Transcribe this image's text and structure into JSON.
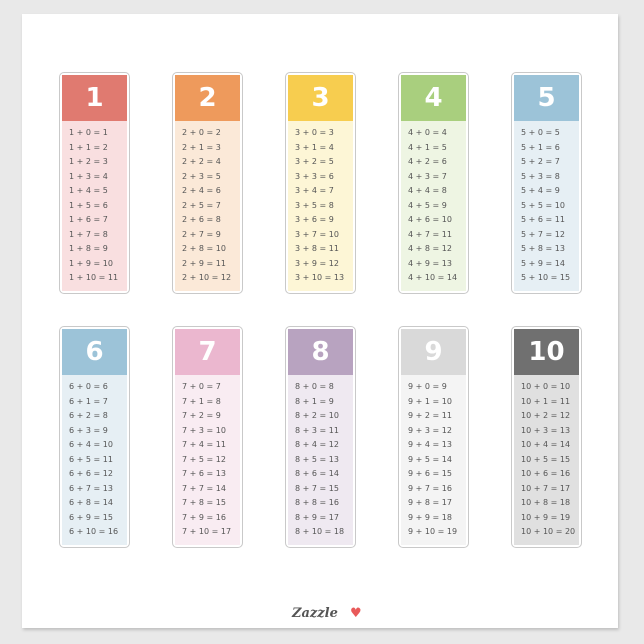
{
  "cards": [
    {
      "number": "1",
      "header_color": "#e07a70",
      "body_color": "#f9dfe0",
      "rows": [
        "1 + 0 = 1",
        "1 + 1 = 2",
        "1 + 2 = 3",
        "1 + 3 = 4",
        "1 + 4 = 5",
        "1 + 5 = 6",
        "1 + 6 = 7",
        "1 + 7 = 8",
        "1 + 8 = 9",
        "1 + 9 = 10",
        "1 + 10 = 11"
      ]
    },
    {
      "number": "2",
      "header_color": "#ee9a5c",
      "body_color": "#fbe9d8",
      "rows": [
        "2 + 0 = 2",
        "2 + 1 = 3",
        "2 + 2 = 4",
        "2 + 3 = 5",
        "2 + 4 = 6",
        "2 + 5 = 7",
        "2 + 6 = 8",
        "2 + 7 = 9",
        "2 + 8 = 10",
        "2 + 9 = 11",
        "2 + 10 = 12"
      ]
    },
    {
      "number": "3",
      "header_color": "#f7cd4f",
      "body_color": "#fdf6d6",
      "rows": [
        "3 + 0 = 3",
        "3 + 1 = 4",
        "3 + 2 = 5",
        "3 + 3 = 6",
        "3 + 4 = 7",
        "3 + 5 = 8",
        "3 + 6 = 9",
        "3 + 7 = 10",
        "3 + 8 = 11",
        "3 + 9 = 12",
        "3 + 10 = 13"
      ]
    },
    {
      "number": "4",
      "header_color": "#a9cf7e",
      "body_color": "#eef5e3",
      "rows": [
        "4 + 0 = 4",
        "4 + 1 = 5",
        "4 + 2 = 6",
        "4 + 3 = 7",
        "4 + 4 = 8",
        "4 + 5 = 9",
        "4 + 6 = 10",
        "4 + 7 = 11",
        "4 + 8 = 12",
        "4 + 9 = 13",
        "4 + 10 = 14"
      ]
    },
    {
      "number": "5",
      "header_color": "#9cc3d8",
      "body_color": "#e6eff4",
      "rows": [
        "5 + 0 = 5",
        "5 + 1 = 6",
        "5 + 2 = 7",
        "5 + 3 = 8",
        "5 + 4 = 9",
        "5 + 5 = 10",
        "5 + 6 = 11",
        "5 + 7 = 12",
        "5 + 8 = 13",
        "5 + 9 = 14",
        "5 + 10 = 15"
      ]
    },
    {
      "number": "6",
      "header_color": "#9cc3d8",
      "body_color": "#e6eff4",
      "rows": [
        "6 + 0 = 6",
        "6 + 1 = 7",
        "6 + 2 = 8",
        "6 + 3 = 9",
        "6 + 4 = 10",
        "6 + 5 = 11",
        "6 + 6 = 12",
        "6 + 7 = 13",
        "6 + 8 = 14",
        "6 + 9 = 15",
        "6 + 10 = 16"
      ]
    },
    {
      "number": "7",
      "header_color": "#ebb7cf",
      "body_color": "#f9ecf2",
      "rows": [
        "7 + 0 = 7",
        "7 + 1 = 8",
        "7 + 2 = 9",
        "7 + 3 = 10",
        "7 + 4 = 11",
        "7 + 5 = 12",
        "7 + 6 = 13",
        "7 + 7 = 14",
        "7 + 8 = 15",
        "7 + 9 = 16",
        "7 + 10 = 17"
      ]
    },
    {
      "number": "8",
      "header_color": "#b8a3c0",
      "body_color": "#efe9f1",
      "rows": [
        "8 + 0 = 8",
        "8 + 1 = 9",
        "8 + 2 = 10",
        "8 + 3 = 11",
        "8 + 4 = 12",
        "8 + 5 = 13",
        "8 + 6 = 14",
        "8 + 7 = 15",
        "8 + 8 = 16",
        "8 + 9 = 17",
        "8 + 10 = 18"
      ]
    },
    {
      "number": "9",
      "header_color": "#d9d9d9",
      "body_color": "#f4f4f4",
      "rows": [
        "9 + 0 = 9",
        "9 + 1 = 10",
        "9 + 2 = 11",
        "9 + 3 = 12",
        "9 + 4 = 13",
        "9 + 5 = 14",
        "9 + 6 = 15",
        "9 + 7 = 16",
        "9 + 8 = 17",
        "9 + 9 = 18",
        "9 + 10 = 19"
      ]
    },
    {
      "number": "10",
      "header_color": "#707070",
      "body_color": "#e0e0e0",
      "rows": [
        "10 + 0 = 10",
        "10 + 1 = 11",
        "10 + 2 = 12",
        "10 + 3 = 13",
        "10 + 4 = 14",
        "10 + 5 = 15",
        "10 + 6 = 16",
        "10 + 7 = 17",
        "10 + 8 = 18",
        "10 + 9 = 19",
        "10 + 10 = 20"
      ]
    }
  ],
  "footer": {
    "logo": "Zazzle",
    "heart_icon": "heart-icon",
    "heart_color": "#e85a5a"
  }
}
